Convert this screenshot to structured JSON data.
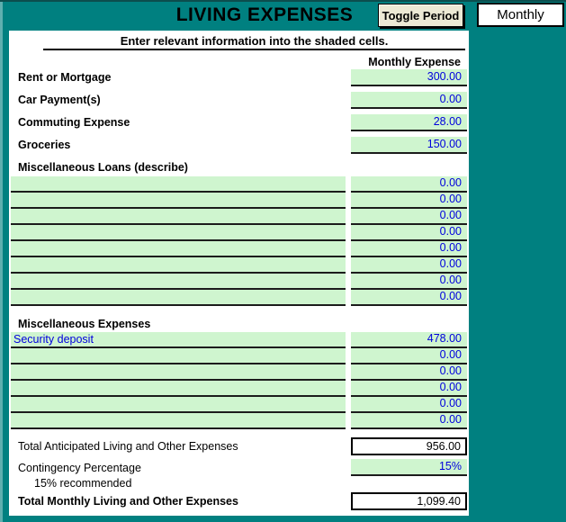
{
  "header": {
    "title": "LIVING EXPENSES",
    "toggle_button_label": "Toggle Period",
    "period_value": "Monthly"
  },
  "instruction": "Enter relevant information into the shaded cells.",
  "column_header": "Monthly Expense",
  "fixed_rows": [
    {
      "label": "Rent or Mortgage",
      "value": "300.00"
    },
    {
      "label": "Car Payment(s)",
      "value": "0.00"
    },
    {
      "label": "Commuting Expense",
      "value": "28.00"
    },
    {
      "label": "Groceries",
      "value": "150.00"
    }
  ],
  "loans": {
    "label": "Miscellaneous Loans (describe)",
    "rows": [
      {
        "description": "",
        "value": "0.00"
      },
      {
        "description": "",
        "value": "0.00"
      },
      {
        "description": "",
        "value": "0.00"
      },
      {
        "description": "",
        "value": "0.00"
      },
      {
        "description": "",
        "value": "0.00"
      },
      {
        "description": "",
        "value": "0.00"
      },
      {
        "description": "",
        "value": "0.00"
      },
      {
        "description": "",
        "value": "0.00"
      }
    ]
  },
  "misc_expenses": {
    "label": "Miscellaneous Expenses",
    "rows": [
      {
        "description": "Security deposit",
        "value": "478.00"
      },
      {
        "description": "",
        "value": "0.00"
      },
      {
        "description": "",
        "value": "0.00"
      },
      {
        "description": "",
        "value": "0.00"
      },
      {
        "description": "",
        "value": "0.00"
      },
      {
        "description": "",
        "value": "0.00"
      }
    ]
  },
  "totals": {
    "anticipated_label": "Total Anticipated Living and Other Expenses",
    "anticipated_value": "956.00",
    "contingency_label": "Contingency Percentage",
    "contingency_value": "15%",
    "contingency_note": "15% recommended",
    "grand_total_label": "Total Monthly Living and Other Expenses",
    "grand_total_value": "1,099.40"
  },
  "colors": {
    "background_teal": "#008080",
    "shaded_cell_green": "#cff5cf",
    "value_text_blue": "#0000dd",
    "button_face": "#ece9d5"
  }
}
